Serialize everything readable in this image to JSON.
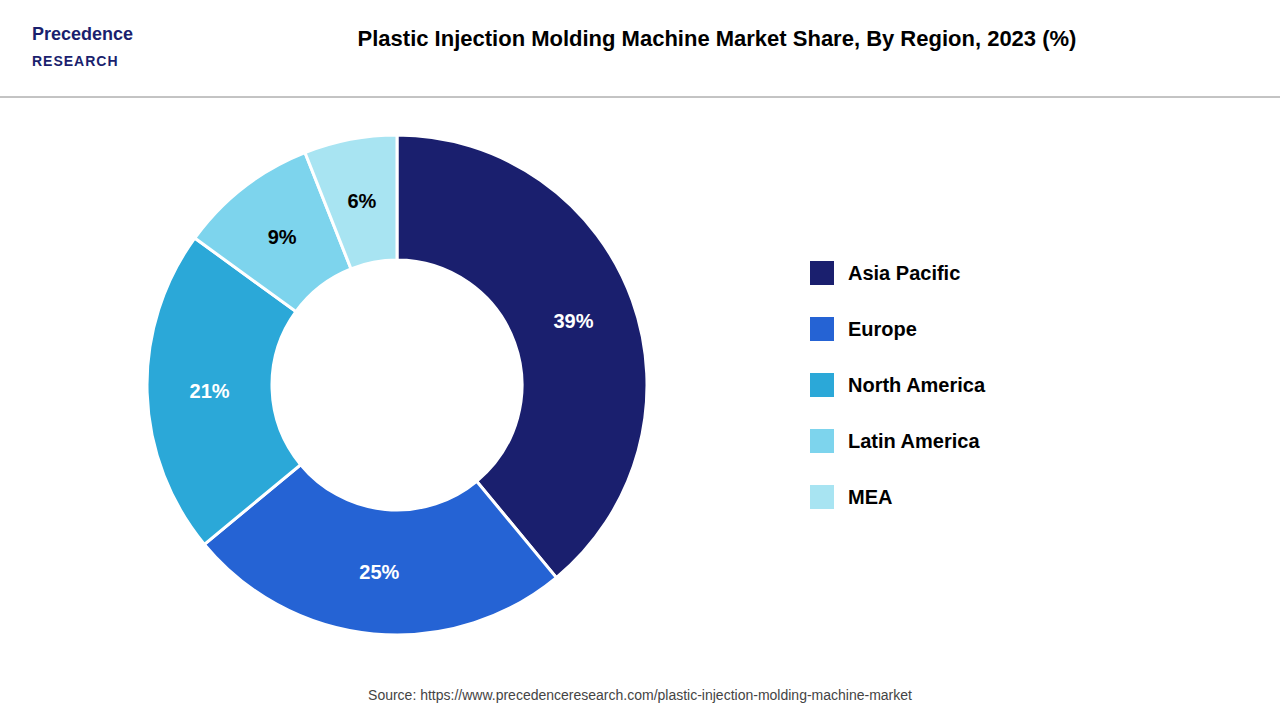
{
  "chart_data": {
    "type": "donut",
    "title": "Plastic Injection Molding Machine Market Share, By Region, 2023 (%)",
    "categories": [
      "Asia Pacific",
      "Europe",
      "North America",
      "Latin America",
      "MEA"
    ],
    "values": [
      39,
      25,
      21,
      9,
      6
    ],
    "value_labels": [
      "39%",
      "25%",
      "21%",
      "9%",
      "6%"
    ],
    "colors": [
      "#1a1f6e",
      "#2563d4",
      "#2ba8d8",
      "#7dd4ed",
      "#a8e4f2"
    ],
    "data_labels": true,
    "legend": "right",
    "annotations": [
      "Precedence",
      "RESEARCH",
      "Source: https://www.precedenceresearch.com/plastic-injection-molding-machine-market"
    ]
  }
}
